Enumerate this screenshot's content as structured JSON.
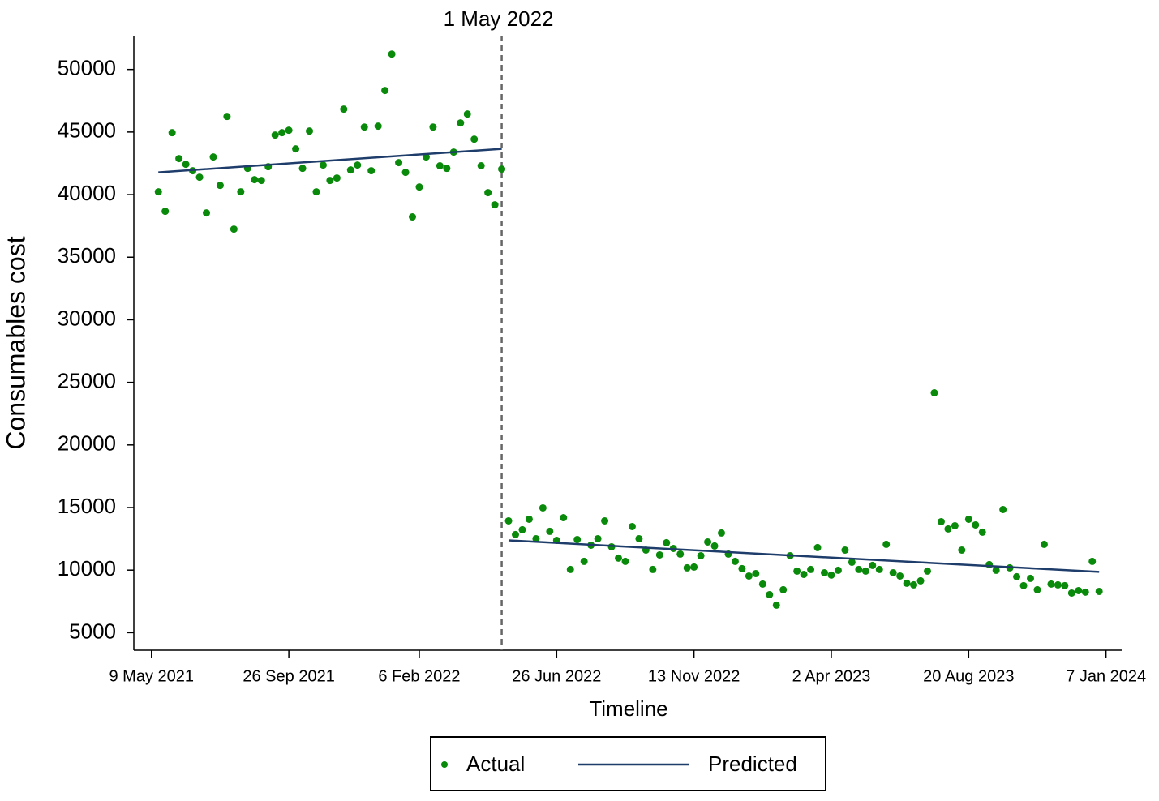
{
  "chart_data": {
    "type": "scatter",
    "xlabel": "Timeline",
    "ylabel": "Consumables cost",
    "xlim": [
      "2021-04-21",
      "2024-01-23"
    ],
    "ylim": [
      3600,
      52700
    ],
    "xticks": [
      {
        "value": "2021-05-09",
        "label": "9 May 2021"
      },
      {
        "value": "2021-09-26",
        "label": "26 Sep 2021"
      },
      {
        "value": "2022-02-06",
        "label": "6 Feb 2022"
      },
      {
        "value": "2022-06-26",
        "label": "26 Jun 2022"
      },
      {
        "value": "2022-11-13",
        "label": "13 Nov 2022"
      },
      {
        "value": "2023-04-02",
        "label": "2 Apr 2023"
      },
      {
        "value": "2023-08-20",
        "label": "20 Aug 2023"
      },
      {
        "value": "2024-01-07",
        "label": "7 Jan 2024"
      }
    ],
    "yticks": [
      5000,
      10000,
      15000,
      20000,
      25000,
      30000,
      35000,
      40000,
      45000,
      50000
    ],
    "vline": {
      "x": "2022-05-01",
      "label": "1 May 2022"
    },
    "legend": "bottom",
    "series": [
      {
        "name": "Actual",
        "kind": "points",
        "color": "#0a8a0a",
        "x": [
          "2021-05-16",
          "2021-05-23",
          "2021-05-30",
          "2021-06-06",
          "2021-06-13",
          "2021-06-20",
          "2021-06-27",
          "2021-07-04",
          "2021-07-11",
          "2021-07-18",
          "2021-07-25",
          "2021-08-01",
          "2021-08-08",
          "2021-08-15",
          "2021-08-22",
          "2021-08-29",
          "2021-09-05",
          "2021-09-12",
          "2021-09-19",
          "2021-09-26",
          "2021-10-03",
          "2021-10-10",
          "2021-10-17",
          "2021-10-24",
          "2021-10-31",
          "2021-11-07",
          "2021-11-14",
          "2021-11-21",
          "2021-11-28",
          "2021-12-05",
          "2021-12-12",
          "2021-12-19",
          "2021-12-26",
          "2022-01-02",
          "2022-01-09",
          "2022-01-16",
          "2022-01-23",
          "2022-01-30",
          "2022-02-06",
          "2022-02-13",
          "2022-02-20",
          "2022-02-27",
          "2022-03-06",
          "2022-03-13",
          "2022-03-20",
          "2022-03-27",
          "2022-04-03",
          "2022-04-10",
          "2022-04-17",
          "2022-04-24",
          "2022-05-01",
          "2022-05-08",
          "2022-05-15",
          "2022-05-22",
          "2022-05-29",
          "2022-06-05",
          "2022-06-12",
          "2022-06-19",
          "2022-06-26",
          "2022-07-03",
          "2022-07-10",
          "2022-07-17",
          "2022-07-24",
          "2022-07-31",
          "2022-08-07",
          "2022-08-14",
          "2022-08-21",
          "2022-08-28",
          "2022-09-04",
          "2022-09-11",
          "2022-09-18",
          "2022-09-25",
          "2022-10-02",
          "2022-10-09",
          "2022-10-16",
          "2022-10-23",
          "2022-10-30",
          "2022-11-06",
          "2022-11-13",
          "2022-11-20",
          "2022-11-27",
          "2022-12-04",
          "2022-12-11",
          "2022-12-18",
          "2022-12-25",
          "2023-01-01",
          "2023-01-08",
          "2023-01-15",
          "2023-01-22",
          "2023-01-29",
          "2023-02-05",
          "2023-02-12",
          "2023-02-19",
          "2023-02-26",
          "2023-03-05",
          "2023-03-12",
          "2023-03-19",
          "2023-03-26",
          "2023-04-02",
          "2023-04-09",
          "2023-04-16",
          "2023-04-23",
          "2023-04-30",
          "2023-05-07",
          "2023-05-14",
          "2023-05-21",
          "2023-05-28",
          "2023-06-04",
          "2023-06-11",
          "2023-06-18",
          "2023-06-25",
          "2023-07-02",
          "2023-07-09",
          "2023-07-16",
          "2023-07-23",
          "2023-07-30",
          "2023-08-06",
          "2023-08-13",
          "2023-08-20",
          "2023-08-27",
          "2023-09-03",
          "2023-09-10",
          "2023-09-17",
          "2023-09-24",
          "2023-10-01",
          "2023-10-08",
          "2023-10-15",
          "2023-10-22",
          "2023-10-29",
          "2023-11-05",
          "2023-11-12",
          "2023-11-19",
          "2023-11-26",
          "2023-12-03",
          "2023-12-10",
          "2023-12-17",
          "2023-12-24",
          "2023-12-31"
        ],
        "values": [
          40224,
          38670,
          44950,
          42880,
          42425,
          41908,
          41390,
          38540,
          43008,
          40740,
          46246,
          37245,
          40224,
          42100,
          41195,
          41130,
          42230,
          44760,
          44950,
          45145,
          43655,
          42100,
          45080,
          40224,
          42360,
          41130,
          41325,
          46830,
          41970,
          42360,
          45400,
          41908,
          45470,
          48320,
          51230,
          42555,
          41780,
          38220,
          40610,
          43008,
          45400,
          42300,
          42100,
          43400,
          45730,
          46440,
          44430,
          42300,
          40160,
          39190,
          42040,
          13935,
          12835,
          13225,
          14065,
          12510,
          14970,
          13095,
          12380,
          14190,
          10050,
          12445,
          10700,
          11990,
          12510,
          13935,
          11860,
          10960,
          10700,
          13480,
          12510,
          11600,
          10050,
          11215,
          12190,
          11730,
          11280,
          10180,
          10245,
          11150,
          12250,
          11930,
          12965,
          11280,
          10700,
          10115,
          9530,
          9725,
          8885,
          8040,
          7200,
          8430,
          11150,
          9920,
          9660,
          10050,
          11800,
          9790,
          9600,
          9985,
          11600,
          10630,
          10050,
          9920,
          10375,
          10050,
          12060,
          9790,
          9530,
          8950,
          8820,
          9145,
          9920,
          24165,
          13870,
          13290,
          13545,
          11600,
          14065,
          13610,
          13030,
          10440,
          9985,
          14840,
          10180,
          9470,
          8760,
          9340,
          8430,
          12060,
          8885,
          8820,
          8760,
          8170,
          8365,
          8240,
          10700,
          8300
        ]
      },
      {
        "name": "Predicted",
        "kind": "line",
        "color": "#1f3d6b",
        "x": [
          "2021-05-16",
          "2022-05-01",
          null,
          "2022-05-08",
          "2023-12-31"
        ],
        "values": [
          41780,
          43655,
          null,
          12380,
          9855
        ]
      }
    ]
  }
}
